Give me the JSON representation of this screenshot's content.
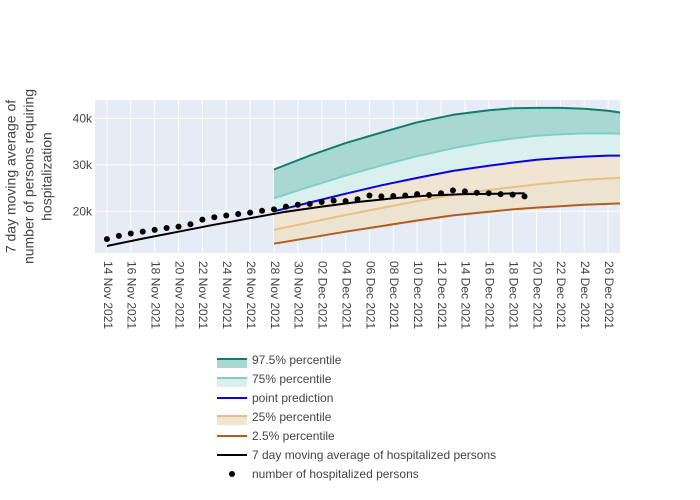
{
  "chart_data": {
    "type": "line",
    "xlabel": "",
    "ylabel_lines": [
      "7 day moving average of",
      "number of persons requiring",
      "hospitalization"
    ],
    "x_ticks": [
      "14 Nov 2021",
      "16 Nov 2021",
      "18 Nov 2021",
      "20 Nov 2021",
      "22 Nov 2021",
      "24 Nov 2021",
      "26 Nov 2021",
      "28 Nov 2021",
      "30 Nov 2021",
      "02 Dec 2021",
      "04 Dec 2021",
      "06 Dec 2021",
      "08 Dec 2021",
      "10 Dec 2021",
      "12 Dec 2021",
      "14 Dec 2021",
      "16 Dec 2021",
      "18 Dec 2021",
      "20 Dec 2021",
      "22 Dec 2021",
      "24 Dec 2021",
      "26 Dec 2021"
    ],
    "x_range": [
      "2021-11-13",
      "2021-12-27"
    ],
    "y_ticks": [
      {
        "value": 20000,
        "label": "20k"
      },
      {
        "value": 30000,
        "label": "30k"
      },
      {
        "value": 40000,
        "label": "40k"
      }
    ],
    "ylim": [
      11000,
      44000
    ],
    "grid": true,
    "legend_position": "bottom",
    "colors": {
      "p975": "#117e6a",
      "p975_fill": "#a9d8d2",
      "p75": "#7fd0c4",
      "p75_fill": "#d9f0ee",
      "point": "#0a00e8",
      "p25": "#e9bf82",
      "p25_fill": "#efe5d2",
      "p025": "#b25c1e",
      "moving_average": "#000000",
      "hospitalized": "#000000",
      "plot_bg": "#e5ecf6"
    },
    "series": [
      {
        "name": "97.5% percentile",
        "x": [
          "2021-11-28",
          "2021-12-01",
          "2021-12-04",
          "2021-12-07",
          "2021-12-10",
          "2021-12-13",
          "2021-12-16",
          "2021-12-18",
          "2021-12-20",
          "2021-12-22",
          "2021-12-24",
          "2021-12-26",
          "2021-12-27"
        ],
        "values": [
          29000,
          32000,
          34700,
          37000,
          39200,
          40800,
          41800,
          42200,
          42300,
          42300,
          42100,
          41700,
          41300
        ]
      },
      {
        "name": "75% percentile",
        "x": [
          "2021-11-28",
          "2021-12-01",
          "2021-12-04",
          "2021-12-07",
          "2021-12-10",
          "2021-12-13",
          "2021-12-16",
          "2021-12-18",
          "2021-12-20",
          "2021-12-22",
          "2021-12-24",
          "2021-12-26",
          "2021-12-27"
        ],
        "values": [
          22800,
          25300,
          27700,
          29900,
          31900,
          33600,
          35000,
          35700,
          36300,
          36600,
          36800,
          36800,
          36700
        ]
      },
      {
        "name": "point prediction",
        "x": [
          "2021-11-28",
          "2021-12-01",
          "2021-12-04",
          "2021-12-07",
          "2021-12-10",
          "2021-12-13",
          "2021-12-16",
          "2021-12-18",
          "2021-12-20",
          "2021-12-22",
          "2021-12-24",
          "2021-12-26",
          "2021-12-27"
        ],
        "values": [
          20000,
          21900,
          23800,
          25600,
          27200,
          28700,
          29800,
          30500,
          31100,
          31500,
          31800,
          32000,
          32000
        ]
      },
      {
        "name": "25% percentile",
        "x": [
          "2021-11-28",
          "2021-12-01",
          "2021-12-04",
          "2021-12-07",
          "2021-12-10",
          "2021-12-13",
          "2021-12-16",
          "2021-12-18",
          "2021-12-20",
          "2021-12-22",
          "2021-12-24",
          "2021-12-26",
          "2021-12-27"
        ],
        "values": [
          16000,
          17600,
          19200,
          20700,
          22200,
          23500,
          24600,
          25200,
          25800,
          26300,
          26800,
          27100,
          27200
        ]
      },
      {
        "name": "2.5% percentile",
        "x": [
          "2021-11-28",
          "2021-12-01",
          "2021-12-04",
          "2021-12-07",
          "2021-12-10",
          "2021-12-13",
          "2021-12-16",
          "2021-12-18",
          "2021-12-20",
          "2021-12-22",
          "2021-12-24",
          "2021-12-26",
          "2021-12-27"
        ],
        "values": [
          13000,
          14300,
          15600,
          16800,
          18000,
          19100,
          19900,
          20400,
          20800,
          21100,
          21400,
          21600,
          21700
        ]
      },
      {
        "name": "7 day moving average of hospitalized persons",
        "x": [
          "2021-11-14",
          "2021-11-17",
          "2021-11-20",
          "2021-11-23",
          "2021-11-26",
          "2021-11-29",
          "2021-12-02",
          "2021-12-05",
          "2021-12-08",
          "2021-12-11",
          "2021-12-14",
          "2021-12-17",
          "2021-12-19"
        ],
        "values": [
          12500,
          14100,
          15600,
          17100,
          18500,
          19900,
          21000,
          22000,
          22800,
          23400,
          23700,
          23800,
          23900
        ]
      },
      {
        "name": "number of hospitalized persons",
        "x": [
          "2021-11-14",
          "2021-11-15",
          "2021-11-16",
          "2021-11-17",
          "2021-11-18",
          "2021-11-19",
          "2021-11-20",
          "2021-11-21",
          "2021-11-22",
          "2021-11-23",
          "2021-11-24",
          "2021-11-25",
          "2021-11-26",
          "2021-11-27",
          "2021-11-28",
          "2021-11-29",
          "2021-11-30",
          "2021-12-01",
          "2021-12-02",
          "2021-12-03",
          "2021-12-04",
          "2021-12-05",
          "2021-12-06",
          "2021-12-07",
          "2021-12-08",
          "2021-12-09",
          "2021-12-10",
          "2021-12-11",
          "2021-12-12",
          "2021-12-13",
          "2021-12-14",
          "2021-12-15",
          "2021-12-16",
          "2021-12-17",
          "2021-12-18",
          "2021-12-19"
        ],
        "values": [
          14000,
          14700,
          15200,
          15600,
          16000,
          16400,
          16700,
          17200,
          18200,
          18700,
          19100,
          19400,
          19700,
          20100,
          20400,
          21000,
          21400,
          21600,
          22000,
          22300,
          22200,
          22600,
          23400,
          23200,
          23300,
          23400,
          23700,
          23500,
          23900,
          24500,
          24300,
          24000,
          23900,
          23700,
          23600,
          23200
        ]
      }
    ]
  }
}
